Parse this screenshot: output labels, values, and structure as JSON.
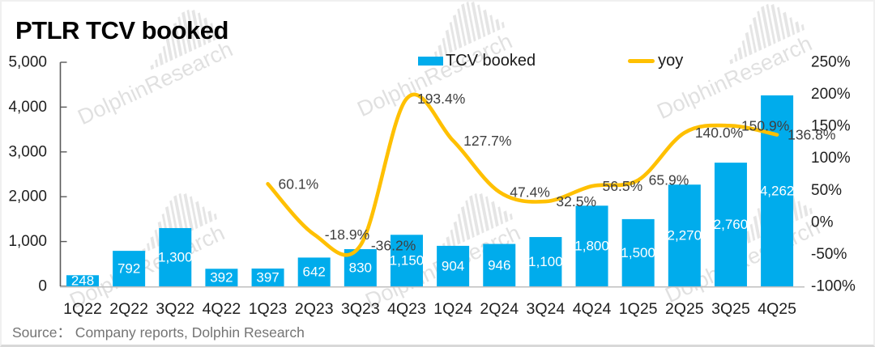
{
  "title": "PTLR TCV booked",
  "source": "Source： Company reports, Dolphin Research",
  "watermark": {
    "text": "DolphinResearch"
  },
  "legend": {
    "items": [
      {
        "label": "TCV booked",
        "type": "bar"
      },
      {
        "label": "yoy",
        "type": "line"
      }
    ]
  },
  "colors": {
    "bar": "#00ACEC",
    "line": "#FFC000",
    "axis_text": "#1f1f1f",
    "yoy_label": "#3f3f3f",
    "bar_label": "#ffffff",
    "axis_line": "#595959",
    "baseline": "#bfbfbf"
  },
  "chart_data": {
    "type": "bar+line",
    "title": "PTLR TCV booked",
    "categories": [
      "1Q22",
      "2Q22",
      "3Q22",
      "4Q22",
      "1Q23",
      "2Q23",
      "3Q23",
      "4Q23",
      "1Q24",
      "2Q24",
      "3Q24",
      "4Q24",
      "1Q25",
      "2Q25",
      "3Q25",
      "4Q25"
    ],
    "series": [
      {
        "name": "TCV booked",
        "type": "bar",
        "axis": "left",
        "color": "#00ACEC",
        "values": [
          248,
          792,
          1300,
          392,
          397,
          642,
          830,
          1150,
          904,
          946,
          1100,
          1800,
          1500,
          2270,
          2760,
          4262
        ],
        "labels": [
          "248",
          "792",
          "1,300",
          "392",
          "397",
          "642",
          "830",
          "1,150",
          "904",
          "946",
          "1,100",
          "1,800",
          "1,500",
          "2,270",
          "2,760",
          "4,262"
        ]
      },
      {
        "name": "yoy",
        "type": "line",
        "axis": "right",
        "color": "#FFC000",
        "values": [
          null,
          null,
          null,
          null,
          60.1,
          -18.9,
          -36.2,
          193.4,
          127.7,
          47.4,
          32.5,
          56.5,
          65.9,
          140.0,
          150.9,
          136.8
        ],
        "labels": [
          null,
          null,
          null,
          null,
          "60.1%",
          "-18.9%",
          "-36.2%",
          "193.4%",
          "127.7%",
          "47.4%",
          "32.5%",
          "56.5%",
          "65.9%",
          "140.0%",
          "150.9%",
          "136.8%"
        ]
      }
    ],
    "left_axis": {
      "min": 0,
      "max": 5000,
      "step": 1000,
      "tick_labels": [
        "0",
        "1,000",
        "2,000",
        "3,000",
        "4,000",
        "5,000"
      ]
    },
    "right_axis": {
      "min": -100,
      "max": 250,
      "step": 50,
      "tick_labels": [
        "-100%",
        "-50%",
        "0%",
        "50%",
        "100%",
        "150%",
        "200%",
        "250%"
      ]
    },
    "grid": false,
    "legend_position": "top",
    "smooth_line": true
  }
}
